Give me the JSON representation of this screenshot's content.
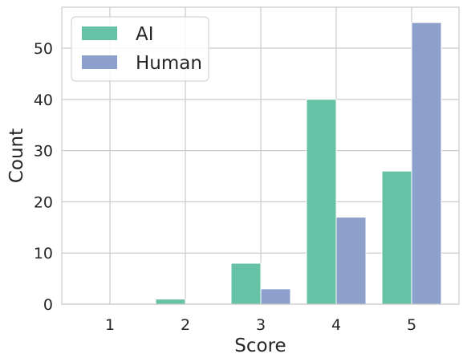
{
  "chart_data": {
    "type": "bar",
    "categories": [
      "1",
      "2",
      "3",
      "4",
      "5"
    ],
    "series": [
      {
        "name": "AI",
        "values": [
          0,
          1,
          8,
          40,
          26
        ],
        "color": "#66c2a5"
      },
      {
        "name": "Human",
        "values": [
          0,
          0,
          3,
          17,
          55
        ],
        "color": "#8da0cb"
      }
    ],
    "xlabel": "Score",
    "ylabel": "Count",
    "ylim": [
      0,
      58
    ],
    "yticks": [
      0,
      10,
      20,
      30,
      40,
      50
    ],
    "grid": true,
    "legend_position": "top-left"
  }
}
